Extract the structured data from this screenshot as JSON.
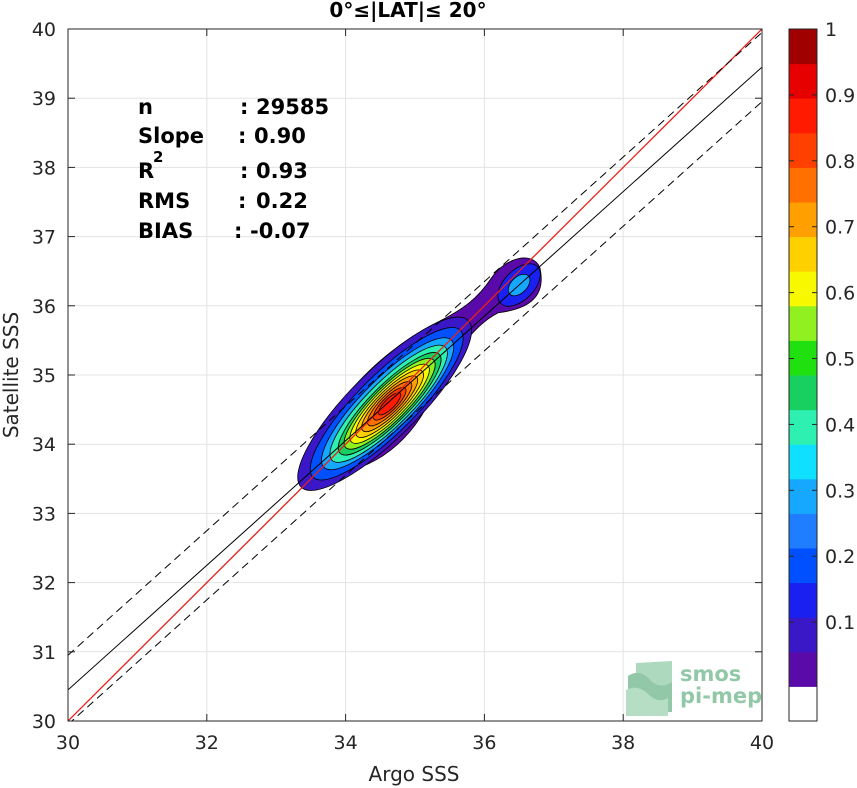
{
  "chart_data": {
    "type": "density-scatter",
    "title": "0°≤|LAT|≤ 20°",
    "xlabel": "Argo SSS",
    "ylabel": "Satellite SSS",
    "xlim": [
      30,
      40
    ],
    "ylim": [
      30,
      40
    ],
    "xticks": [
      "30",
      "32",
      "34",
      "36",
      "38",
      "40"
    ],
    "yticks": [
      "30",
      "31",
      "32",
      "33",
      "34",
      "35",
      "36",
      "37",
      "38",
      "39",
      "40"
    ],
    "grid": true,
    "stats": [
      {
        "label": "n",
        "sep": ":",
        "value": "29585"
      },
      {
        "label": "Slope",
        "sep": ":",
        "value": "0.90"
      },
      {
        "label": "R",
        "sup": "2",
        "sep": ":",
        "value": "0.93"
      },
      {
        "label": "RMS",
        "sep": ":",
        "value": "0.22"
      },
      {
        "label": "BIAS",
        "sep": ":",
        "value": "-0.07"
      }
    ],
    "lines": {
      "identity": {
        "slope": 1.0,
        "intercept": 0.0,
        "color": "#e8201c"
      },
      "fit": {
        "slope": 0.9,
        "intercept": 3.45,
        "color": "#000000"
      },
      "fit_band_offset": 0.5
    },
    "density_peaks": [
      {
        "x": 34.75,
        "y": 34.7,
        "value": 1.0
      },
      {
        "x": 36.5,
        "y": 36.3,
        "value": 0.3
      }
    ],
    "colorbar": {
      "min": 0,
      "max": 1,
      "ticks": [
        "0.1",
        "0.2",
        "0.3",
        "0.4",
        "0.5",
        "0.6",
        "0.7",
        "0.8",
        "0.9",
        "1"
      ],
      "colors": [
        "#ffffff",
        "#5a0aa8",
        "#3a18c8",
        "#1a20f0",
        "#0050ff",
        "#1f7dff",
        "#16a8ff",
        "#10e0ff",
        "#2ef0b0",
        "#18d060",
        "#20e010",
        "#90f020",
        "#f8f800",
        "#ffd000",
        "#ffa000",
        "#ff7000",
        "#ff4000",
        "#ff1a00",
        "#e60000",
        "#a00000"
      ]
    },
    "watermark": {
      "line1": "smos",
      "line2": "pi-mep"
    }
  }
}
